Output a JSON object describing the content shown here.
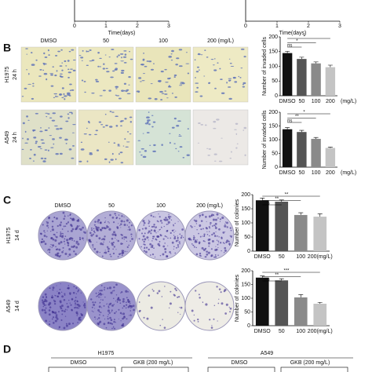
{
  "panel_labels": {
    "b": "B",
    "c": "C",
    "d": "D"
  },
  "panel_b": {
    "columns": [
      "DMSO",
      "50",
      "100",
      "200 (mg/L)"
    ],
    "rows": [
      {
        "cell_line": "H1975",
        "time": "24 h"
      },
      {
        "cell_line": "A549",
        "time": "24 h"
      }
    ]
  },
  "panel_c": {
    "columns": [
      "DMSO",
      "50",
      "100",
      "200 (mg/L)"
    ],
    "rows": [
      {
        "cell_line": "H1975",
        "time": "14 d"
      },
      {
        "cell_line": "A549",
        "time": "14 d"
      }
    ]
  },
  "panel_d": {
    "groups": [
      {
        "cell_line": "H1975",
        "conditions": [
          "DMSO",
          "GKB (200 mg/L)"
        ]
      },
      {
        "cell_line": "A549",
        "conditions": [
          "DMSO",
          "GKB (200 mg/L)"
        ]
      }
    ]
  },
  "chart_data": [
    {
      "type": "line",
      "xlabel": "Time(days)",
      "xlim": [
        0,
        3
      ],
      "xticks": [
        0,
        1,
        2,
        3
      ]
    },
    {
      "type": "line",
      "xlabel": "Time(days)",
      "xlim": [
        0,
        3
      ],
      "xticks": [
        0,
        1,
        2,
        3
      ]
    },
    {
      "type": "bar",
      "ylabel": "Number of invaded cells",
      "categories": [
        "DMSO",
        "50",
        "100",
        "200"
      ],
      "unit": "(mg/L)",
      "values": [
        145,
        125,
        110,
        97
      ],
      "errors": [
        6,
        6,
        5,
        7
      ],
      "colors": [
        "#111111",
        "#555555",
        "#8a8a8a",
        "#c4c4c4"
      ],
      "ylim": [
        0,
        200
      ],
      "yticks": [
        0,
        50,
        100,
        150,
        200
      ],
      "significance": [
        "*",
        "*",
        "ns"
      ]
    },
    {
      "type": "bar",
      "ylabel": "Number of invaded cells",
      "categories": [
        "DMSO",
        "50",
        "100",
        "200"
      ],
      "unit": "(mg/L)",
      "values": [
        138,
        128,
        103,
        70
      ],
      "errors": [
        6,
        6,
        5,
        3
      ],
      "colors": [
        "#111111",
        "#555555",
        "#8a8a8a",
        "#c4c4c4"
      ],
      "ylim": [
        0,
        200
      ],
      "yticks": [
        0,
        50,
        100,
        150,
        200
      ],
      "significance": [
        "*",
        "**",
        "ns"
      ]
    },
    {
      "type": "bar",
      "ylabel": "Number of colonies",
      "categories": [
        "DMSO",
        "50",
        "100",
        "200(mg/L)"
      ],
      "values": [
        180,
        175,
        128,
        122
      ],
      "errors": [
        8,
        6,
        8,
        10
      ],
      "colors": [
        "#111111",
        "#555555",
        "#8a8a8a",
        "#c4c4c4"
      ],
      "ylim": [
        0,
        200
      ],
      "yticks": [
        0,
        50,
        100,
        150,
        200
      ],
      "significance": [
        "**",
        "**",
        "ns"
      ]
    },
    {
      "type": "bar",
      "ylabel": "Number of colonies",
      "categories": [
        "DMSO",
        "50",
        "100",
        "200(mg/L)"
      ],
      "values": [
        175,
        165,
        103,
        80
      ],
      "errors": [
        6,
        6,
        10,
        5
      ],
      "colors": [
        "#111111",
        "#555555",
        "#8a8a8a",
        "#c4c4c4"
      ],
      "ylim": [
        0,
        200
      ],
      "yticks": [
        0,
        50,
        100,
        150,
        200
      ],
      "significance": [
        "***",
        "**",
        "ns"
      ]
    }
  ]
}
